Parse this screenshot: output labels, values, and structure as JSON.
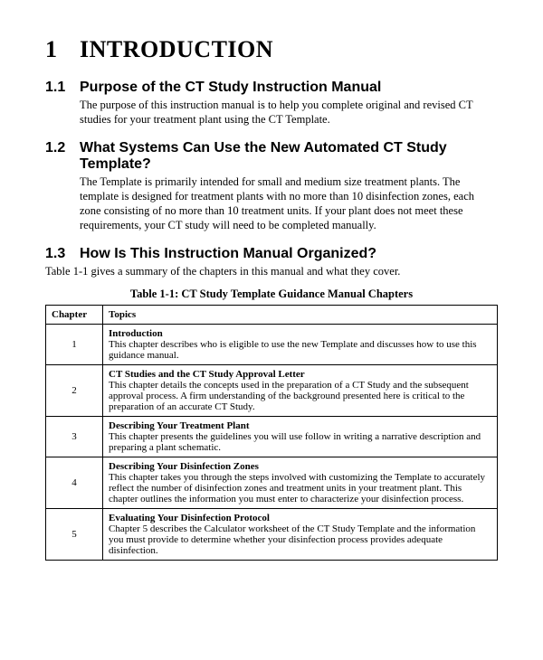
{
  "heading": {
    "num": "1",
    "title": "INTRODUCTION"
  },
  "sections": [
    {
      "num": "1.1",
      "title": "Purpose of the CT Study Instruction Manual",
      "body": "The purpose of this instruction manual is to help you complete original and revised CT studies for your treatment plant using the CT Template."
    },
    {
      "num": "1.2",
      "title": "What Systems Can Use the New Automated CT Study Template?",
      "body": "The Template is primarily intended for small and medium size treatment plants. The template is designed for treatment plants with no more than 10 disinfection zones, each zone consisting of no more than 10 treatment units.  If your plant does not meet these requirements, your CT study will need to be completed manually."
    },
    {
      "num": "1.3",
      "title": "How Is This Instruction Manual Organized?",
      "body": "Table 1-1 gives a summary of the chapters in this manual and what they cover."
    }
  ],
  "table": {
    "caption": "Table 1-1: CT Study Template Guidance Manual Chapters",
    "columns": [
      "Chapter",
      "Topics"
    ],
    "rows": [
      {
        "chapter": "1",
        "title": "Introduction",
        "desc": "This chapter describes who is eligible to use the new Template and discusses how to use this guidance manual."
      },
      {
        "chapter": "2",
        "title": "CT Studies and the CT Study Approval Letter",
        "desc": "This chapter details the concepts used in the preparation of a CT Study and the subsequent approval process.  A firm understanding of the background presented here is critical to the preparation of an accurate CT Study."
      },
      {
        "chapter": "3",
        "title": "Describing Your Treatment Plant",
        "desc": "This chapter presents the guidelines you will use follow in writing a narrative description and preparing a plant schematic."
      },
      {
        "chapter": "4",
        "title": "Describing Your Disinfection Zones",
        "desc": "This chapter takes you through the steps involved with customizing the Template to accurately reflect the number of disinfection zones and treatment units in your treatment plant.  This chapter outlines the information you must enter to characterize your disinfection process."
      },
      {
        "chapter": "5",
        "title": "Evaluating Your Disinfection Protocol",
        "desc": "Chapter 5 describes the Calculator worksheet of the CT Study Template and the information you must provide to determine whether your disinfection process provides adequate disinfection."
      }
    ]
  }
}
